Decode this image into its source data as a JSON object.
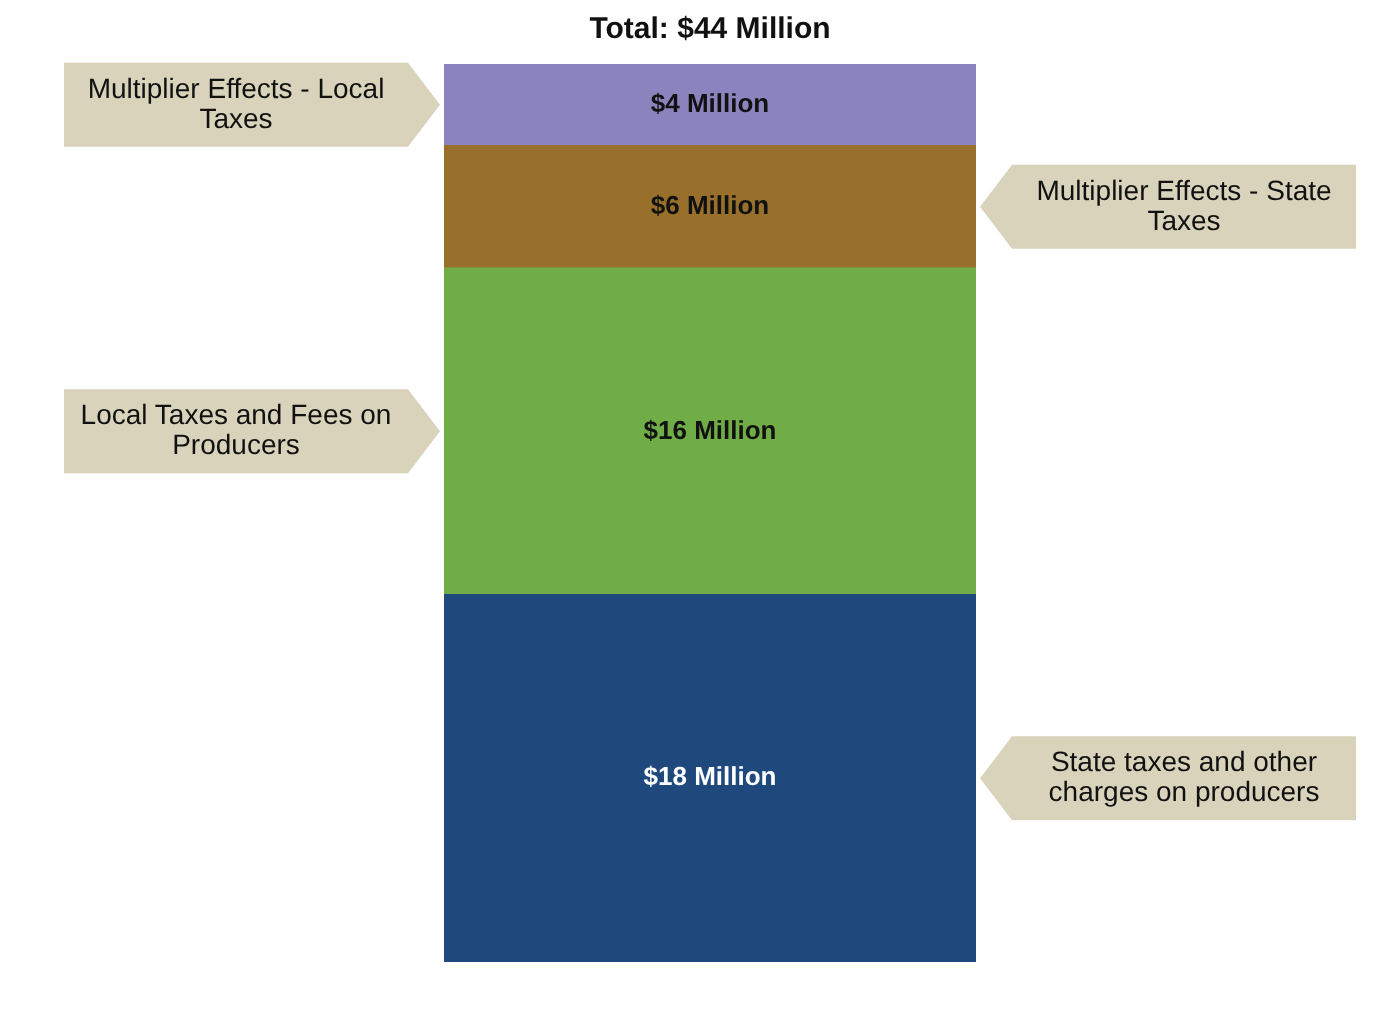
{
  "chart_data": {
    "type": "bar",
    "title": "Total: $44 Million",
    "categories": [
      null
    ],
    "stacked": true,
    "tick_labels": false,
    "legend": false,
    "series": [
      {
        "name": "State taxes and other charges on producers",
        "color": "#1f497d",
        "values": [
          18
        ],
        "value_labels": [
          "$18 Million"
        ]
      },
      {
        "name": "Local Taxes and Fees on Producers",
        "color": "#70ad47",
        "values": [
          16
        ],
        "value_labels": [
          "$16 Million"
        ]
      },
      {
        "name": "Multiplier Effects - State Taxes",
        "color": "#98702c",
        "values": [
          6
        ],
        "value_labels": [
          "$6 Million"
        ]
      },
      {
        "name": "Multiplier Effects - Local Taxes",
        "color": "#8b83be",
        "values": [
          4
        ],
        "value_labels": [
          "$4 Million"
        ]
      }
    ]
  }
}
